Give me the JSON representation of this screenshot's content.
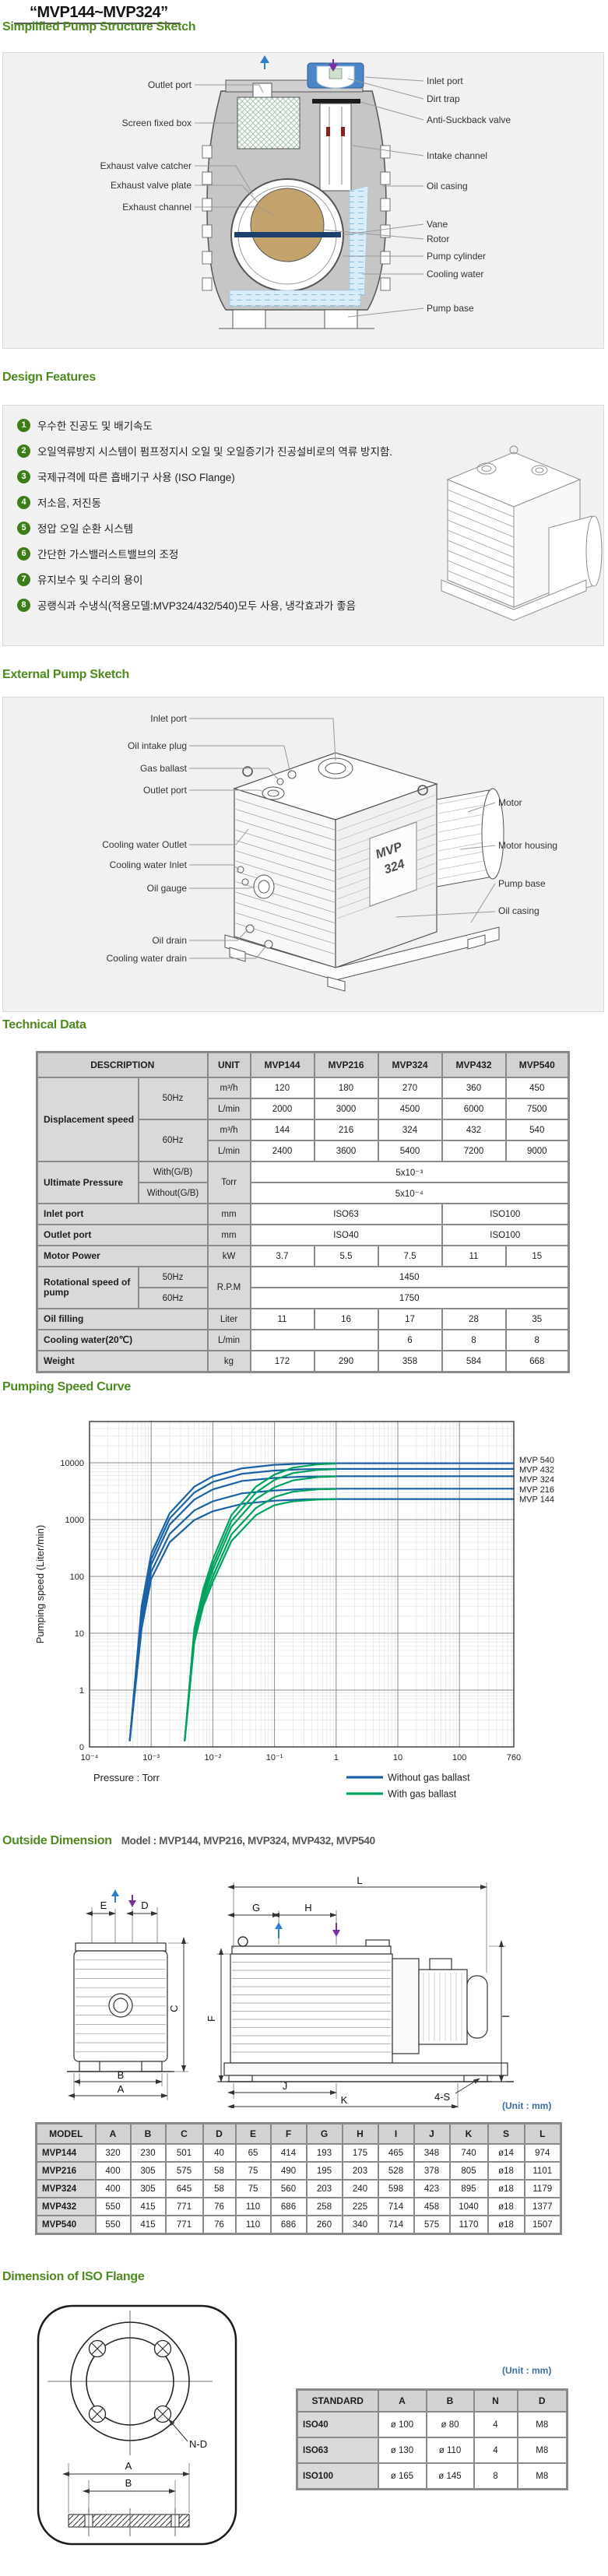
{
  "title": "“MVP144~MVP324”",
  "structure": {
    "heading": "Simplified Pump Structure Sketch",
    "labels_left": [
      "Outlet port",
      "Screen fixed box",
      "Exhaust valve catcher",
      "Exhaust valve plate",
      "Exhaust channel"
    ],
    "labels_right": [
      "Inlet port",
      "Dirt trap",
      "Anti-Suckback valve",
      "Intake channel",
      "Oil casing",
      "Vane",
      "Rotor",
      "Pump cylinder",
      "Cooling water",
      "Pump base"
    ]
  },
  "design": {
    "heading": "Design Features",
    "items": [
      "우수한 진공도 및 배기속도",
      "오일역류방지 시스템이 펌프정지시 오일 및 오일증기가 진공설비로의 역류 방지함.",
      "국제규격에 따른 흡배기구 사용 (ISO Flange)",
      "저소음, 저진동",
      "정압 오일 순환 시스템",
      "간단한 가스밸러스트밸브의 조정",
      "유지보수 및 수리의 용이",
      "공랭식과 수냉식(적용모델:MVP324/432/540)모두 사용, 냉각효과가 좋음"
    ]
  },
  "external": {
    "heading": "External Pump Sketch",
    "labels_left": [
      "Inlet port",
      "Oil intake plug",
      "Gas ballast",
      "Outlet port",
      "Cooling water Outlet",
      "Cooling water Inlet",
      "Oil gauge",
      "Oil drain",
      "Cooling water drain"
    ],
    "labels_right": [
      "Motor",
      "Motor housing",
      "Pump base",
      "Oil casing"
    ],
    "pump_label_line1": "MVP",
    "pump_label_line2": "324"
  },
  "technical": {
    "heading": "Technical Data",
    "table": {
      "rows": [
        [
          {
            "t": "DESCRIPTION",
            "cs": 2,
            "c": "hd"
          },
          {
            "t": "UNIT",
            "c": "hd"
          },
          {
            "t": "MVP144",
            "c": "hd"
          },
          {
            "t": "MVP216",
            "c": "hd"
          },
          {
            "t": "MVP324",
            "c": "hd"
          },
          {
            "t": "MVP432",
            "c": "hd"
          },
          {
            "t": "MVP540",
            "c": "hd"
          }
        ],
        [
          {
            "t": "Displacement speed",
            "rs": 4,
            "c": "lab"
          },
          {
            "t": "50Hz",
            "rs": 2,
            "c": "sub"
          },
          {
            "t": "m³/h",
            "c": "unit"
          },
          {
            "t": "120"
          },
          {
            "t": "180"
          },
          {
            "t": "270"
          },
          {
            "t": "360"
          },
          {
            "t": "450"
          }
        ],
        [
          {
            "t": "L/min",
            "c": "unit"
          },
          {
            "t": "2000"
          },
          {
            "t": "3000"
          },
          {
            "t": "4500"
          },
          {
            "t": "6000"
          },
          {
            "t": "7500"
          }
        ],
        [
          {
            "t": "60Hz",
            "rs": 2,
            "c": "sub"
          },
          {
            "t": "m³/h",
            "c": "unit"
          },
          {
            "t": "144"
          },
          {
            "t": "216"
          },
          {
            "t": "324"
          },
          {
            "t": "432"
          },
          {
            "t": "540"
          }
        ],
        [
          {
            "t": "L/min",
            "c": "unit"
          },
          {
            "t": "2400"
          },
          {
            "t": "3600"
          },
          {
            "t": "5400"
          },
          {
            "t": "7200"
          },
          {
            "t": "9000"
          }
        ],
        [
          {
            "t": "Ultimate Pressure",
            "rs": 2,
            "c": "lab"
          },
          {
            "t": "With(G/B)",
            "c": "sub"
          },
          {
            "t": "Torr",
            "rs": 2,
            "c": "unit"
          },
          {
            "t": "5x10⁻³",
            "cs": 5
          }
        ],
        [
          {
            "t": "Without(G/B)",
            "c": "sub"
          },
          {
            "t": "5x10⁻⁴",
            "cs": 5
          }
        ],
        [
          {
            "t": "Inlet port",
            "cs": 2,
            "c": "lab"
          },
          {
            "t": "mm",
            "c": "unit"
          },
          {
            "t": "ISO63",
            "cs": 3
          },
          {
            "t": "ISO100",
            "cs": 2
          }
        ],
        [
          {
            "t": "Outlet port",
            "cs": 2,
            "c": "lab"
          },
          {
            "t": "mm",
            "c": "unit"
          },
          {
            "t": "ISO40",
            "cs": 3
          },
          {
            "t": "ISO100",
            "cs": 2
          }
        ],
        [
          {
            "t": "Motor Power",
            "cs": 2,
            "c": "lab"
          },
          {
            "t": "kW",
            "c": "unit"
          },
          {
            "t": "3.7"
          },
          {
            "t": "5.5"
          },
          {
            "t": "7.5"
          },
          {
            "t": "11"
          },
          {
            "t": "15"
          }
        ],
        [
          {
            "t": "Rotational speed of pump",
            "rs": 2,
            "c": "lab"
          },
          {
            "t": "50Hz",
            "c": "sub"
          },
          {
            "t": "R.P.M",
            "rs": 2,
            "c": "unit"
          },
          {
            "t": "1450",
            "cs": 5
          }
        ],
        [
          {
            "t": "60Hz",
            "c": "sub"
          },
          {
            "t": "1750",
            "cs": 5
          }
        ],
        [
          {
            "t": "Oil filling",
            "cs": 2,
            "c": "lab"
          },
          {
            "t": "Liter",
            "c": "unit"
          },
          {
            "t": "11"
          },
          {
            "t": "16"
          },
          {
            "t": "17"
          },
          {
            "t": "28"
          },
          {
            "t": "35"
          }
        ],
        [
          {
            "t": "Cooling water(20℃)",
            "cs": 2,
            "c": "lab"
          },
          {
            "t": "L/min",
            "c": "unit"
          },
          {
            "t": "",
            "cs": 2
          },
          {
            "t": "6"
          },
          {
            "t": "8"
          },
          {
            "t": "8"
          }
        ],
        [
          {
            "t": "Weight",
            "cs": 2,
            "c": "lab"
          },
          {
            "t": "kg",
            "c": "unit"
          },
          {
            "t": "172"
          },
          {
            "t": "290"
          },
          {
            "t": "358"
          },
          {
            "t": "584"
          },
          {
            "t": "668"
          }
        ]
      ]
    }
  },
  "chart_data": {
    "type": "line",
    "title": "Pumping Speed Curve",
    "xlabel": "Pressure : Torr",
    "ylabel": "Pumping speed (Liter/min)",
    "x_scale": "log",
    "y_scale": "log",
    "xlim": [
      0.0001,
      760
    ],
    "ylim": [
      0.1,
      50000
    ],
    "grid": true,
    "x_ticks": [
      "10⁻⁴",
      "10⁻³",
      "10⁻²",
      "10⁻¹",
      "1",
      "10",
      "100",
      "760"
    ],
    "x_tick_values": [
      0.0001,
      0.001,
      0.01,
      0.1,
      1,
      10,
      100,
      760
    ],
    "y_ticks": [
      "0",
      "1",
      "10",
      "100",
      "1000",
      "10000"
    ],
    "y_tick_values": [
      0.1,
      1,
      10,
      100,
      1000,
      10000
    ],
    "curve_labels": [
      "MVP 540",
      "MVP 432",
      "MVP 324",
      "MVP 216",
      "MVP 144"
    ],
    "legend": [
      {
        "label": "Without gas ballast",
        "color": "#1a62a5"
      },
      {
        "label": "With gas ballast",
        "color": "#00a25f"
      }
    ],
    "series": [
      {
        "name": "MVP540-without-gas-ballast",
        "color": "#1a62a5",
        "x": [
          0.00045,
          0.0007,
          0.001,
          0.002,
          0.005,
          0.01,
          0.03,
          0.1,
          0.3,
          1,
          10,
          100,
          760
        ],
        "y": [
          0.13,
          30,
          250,
          1300,
          3800,
          5800,
          8000,
          9200,
          9700,
          9800,
          9800,
          9800,
          9800
        ]
      },
      {
        "name": "MVP432-without-gas-ballast",
        "color": "#1a62a5",
        "x": [
          0.00045,
          0.0007,
          0.001,
          0.002,
          0.005,
          0.01,
          0.03,
          0.1,
          0.3,
          1,
          10,
          100,
          760
        ],
        "y": [
          0.13,
          25,
          200,
          1050,
          3000,
          4600,
          6400,
          7300,
          7700,
          7800,
          7800,
          7800,
          7800
        ]
      },
      {
        "name": "MVP324-without-gas-ballast",
        "color": "#1a62a5",
        "x": [
          0.00045,
          0.0007,
          0.001,
          0.002,
          0.005,
          0.01,
          0.03,
          0.1,
          0.3,
          1,
          10,
          100,
          760
        ],
        "y": [
          0.13,
          20,
          160,
          820,
          2250,
          3400,
          4800,
          5400,
          5700,
          5800,
          5800,
          5800,
          5800
        ]
      },
      {
        "name": "MVP216-without-gas-ballast",
        "color": "#1a62a5",
        "x": [
          0.00045,
          0.0007,
          0.001,
          0.002,
          0.005,
          0.01,
          0.03,
          0.1,
          0.3,
          1,
          10,
          100,
          760
        ],
        "y": [
          0.13,
          16,
          120,
          560,
          1450,
          2100,
          2900,
          3250,
          3450,
          3500,
          3500,
          3500,
          3500
        ]
      },
      {
        "name": "MVP144-without-gas-ballast",
        "color": "#1a62a5",
        "x": [
          0.00045,
          0.0007,
          0.001,
          0.002,
          0.005,
          0.01,
          0.03,
          0.1,
          0.3,
          1,
          10,
          100,
          760
        ],
        "y": [
          0.13,
          12,
          90,
          400,
          980,
          1400,
          1900,
          2150,
          2270,
          2300,
          2300,
          2300,
          2300
        ]
      },
      {
        "name": "MVP540-with-gas-ballast",
        "color": "#00a25f",
        "x": [
          0.0035,
          0.005,
          0.007,
          0.01,
          0.02,
          0.05,
          0.1,
          0.2,
          0.5,
          1
        ],
        "y": [
          0.13,
          12,
          60,
          200,
          1200,
          3800,
          6200,
          8200,
          9400,
          9700
        ]
      },
      {
        "name": "MVP432-with-gas-ballast",
        "color": "#00a25f",
        "x": [
          0.0035,
          0.005,
          0.007,
          0.01,
          0.02,
          0.05,
          0.1,
          0.2,
          0.5,
          1
        ],
        "y": [
          0.13,
          10,
          50,
          160,
          950,
          3000,
          5000,
          6600,
          7500,
          7700
        ]
      },
      {
        "name": "MVP324-with-gas-ballast",
        "color": "#00a25f",
        "x": [
          0.0035,
          0.005,
          0.007,
          0.01,
          0.02,
          0.05,
          0.1,
          0.2,
          0.5,
          1
        ],
        "y": [
          0.13,
          9,
          42,
          130,
          750,
          2300,
          3700,
          4900,
          5600,
          5750
        ]
      },
      {
        "name": "MVP216-with-gas-ballast",
        "color": "#00a25f",
        "x": [
          0.0035,
          0.005,
          0.007,
          0.01,
          0.02,
          0.05,
          0.1,
          0.2,
          0.5,
          1
        ],
        "y": [
          0.13,
          8,
          35,
          100,
          550,
          1600,
          2500,
          3100,
          3400,
          3450
        ]
      },
      {
        "name": "MVP144-with-gas-ballast",
        "color": "#00a25f",
        "x": [
          0.0035,
          0.005,
          0.007,
          0.01,
          0.02,
          0.05,
          0.1,
          0.2,
          0.5,
          1
        ],
        "y": [
          0.13,
          7,
          30,
          80,
          420,
          1200,
          1800,
          2100,
          2250,
          2280
        ]
      }
    ]
  },
  "outside": {
    "heading": "Outside Dimension",
    "subtitle": "Model : MVP144, MVP216, MVP324, MVP432, MVP540",
    "unit_note": "(Unit : mm)",
    "dim_letters": {
      "A": "A",
      "B": "B",
      "C": "C",
      "D": "D",
      "E": "E",
      "F": "F",
      "G": "G",
      "H": "H",
      "I": "I",
      "J": "J",
      "K": "K",
      "L": "L",
      "S4": "4-S"
    },
    "table": {
      "headers": [
        "MODEL",
        "A",
        "B",
        "C",
        "D",
        "E",
        "F",
        "G",
        "H",
        "I",
        "J",
        "K",
        "S",
        "L"
      ],
      "rows": [
        [
          "MVP144",
          "320",
          "230",
          "501",
          "40",
          "65",
          "414",
          "193",
          "175",
          "465",
          "348",
          "740",
          "ø14",
          "974"
        ],
        [
          "MVP216",
          "400",
          "305",
          "575",
          "58",
          "75",
          "490",
          "195",
          "203",
          "528",
          "378",
          "805",
          "ø18",
          "1101"
        ],
        [
          "MVP324",
          "400",
          "305",
          "645",
          "58",
          "75",
          "560",
          "203",
          "240",
          "598",
          "423",
          "895",
          "ø18",
          "1179"
        ],
        [
          "MVP432",
          "550",
          "415",
          "771",
          "76",
          "110",
          "686",
          "258",
          "225",
          "714",
          "458",
          "1040",
          "ø18",
          "1377"
        ],
        [
          "MVP540",
          "550",
          "415",
          "771",
          "76",
          "110",
          "686",
          "260",
          "340",
          "714",
          "575",
          "1170",
          "ø18",
          "1507"
        ]
      ]
    }
  },
  "flange": {
    "heading": "Dimension of ISO Flange",
    "unit_note": "(Unit : mm)",
    "labels": {
      "nd": "N-D",
      "a": "A",
      "b": "B"
    },
    "table": {
      "headers": [
        "STANDARD",
        "A",
        "B",
        "N",
        "D"
      ],
      "rows": [
        [
          "ISO40",
          "ø 100",
          "ø 80",
          "4",
          "M8"
        ],
        [
          "ISO63",
          "ø 130",
          "ø 110",
          "4",
          "M8"
        ],
        [
          "ISO100",
          "ø 165",
          "ø 145",
          "8",
          "M8"
        ]
      ]
    }
  }
}
